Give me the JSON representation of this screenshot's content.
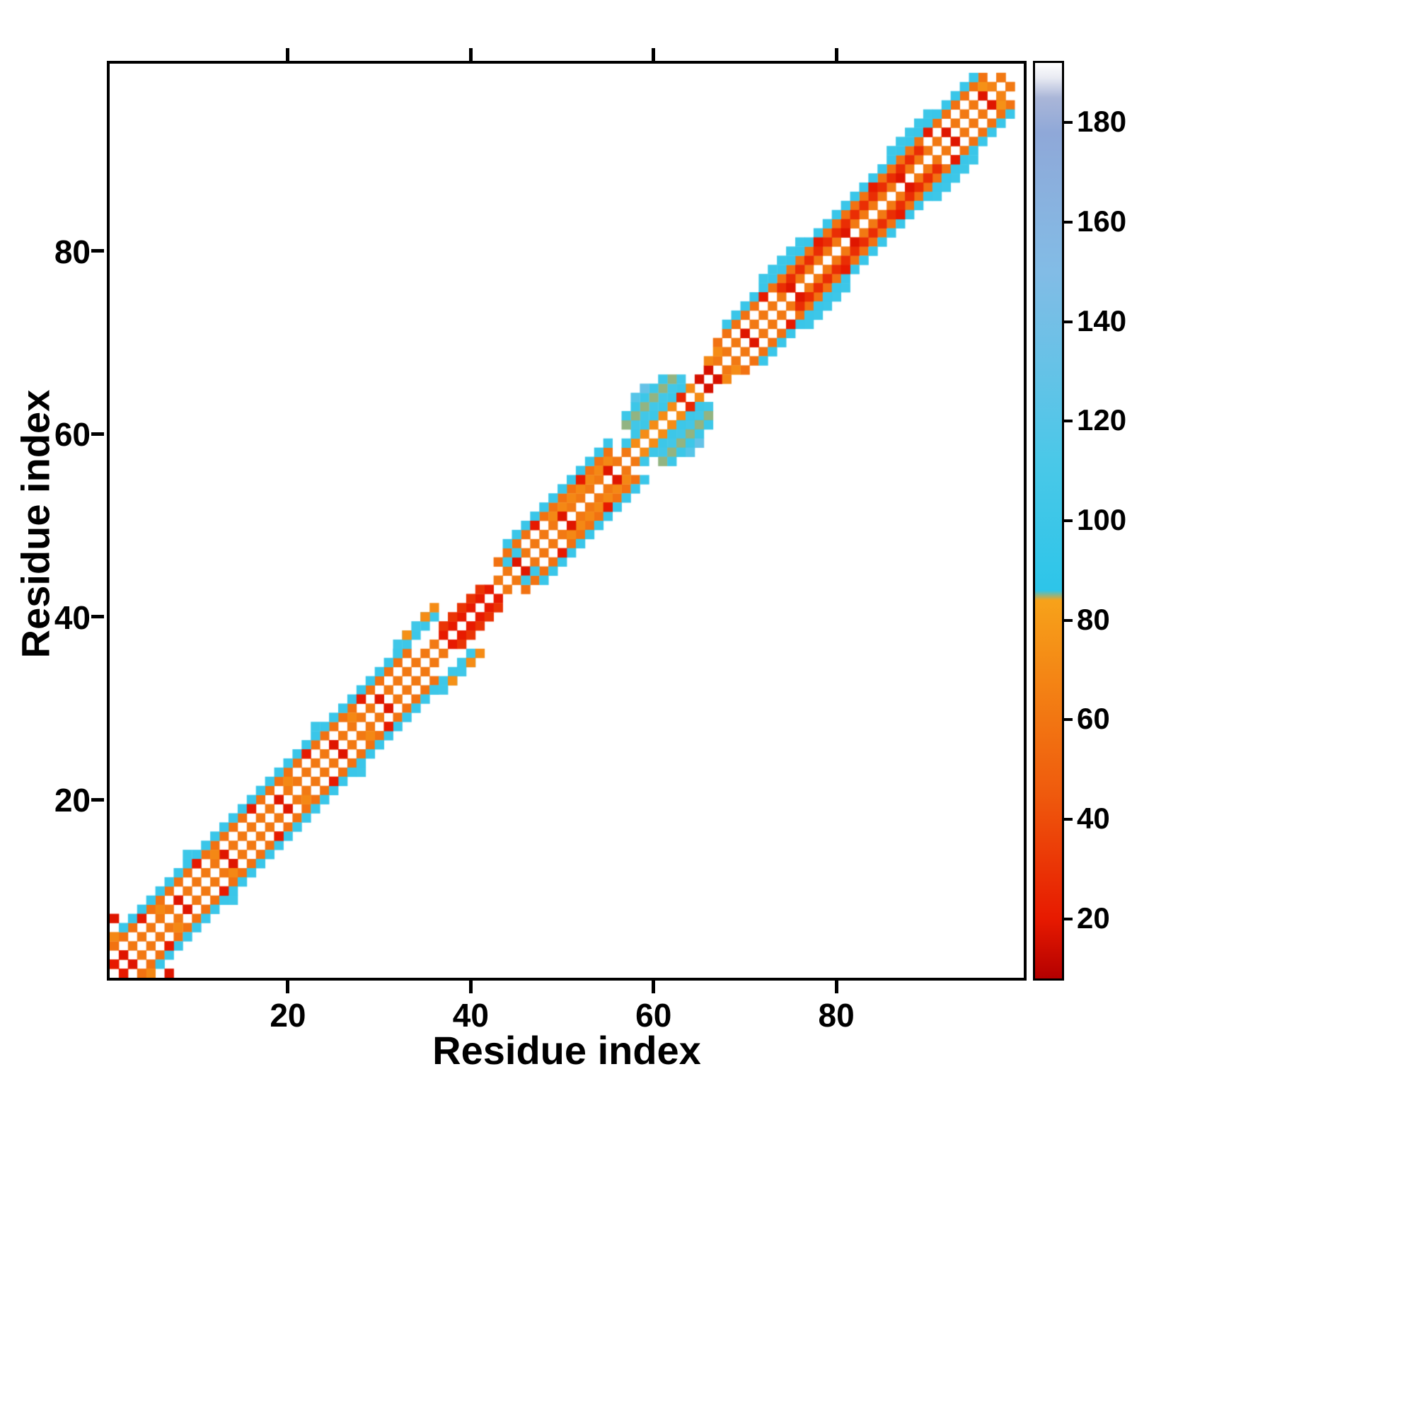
{
  "figure": {
    "xlabel": "Residue index",
    "ylabel": "Residue index"
  },
  "chart_data": {
    "type": "heatmap",
    "title": "",
    "xlabel": "Residue index",
    "ylabel": "Residue index",
    "n_residues": 100,
    "x_range": [
      1,
      100
    ],
    "y_range": [
      1,
      100
    ],
    "x_ticks": [
      20,
      40,
      60,
      80
    ],
    "y_ticks": [
      20,
      40,
      60,
      80
    ],
    "colorbar_ticks": [
      20,
      40,
      60,
      80,
      100,
      120,
      140,
      160,
      180
    ],
    "value_min": 8,
    "value_max": 192,
    "background_value": null,
    "colormap_stops": [
      [
        8,
        "#b40000"
      ],
      [
        20,
        "#e71a00"
      ],
      [
        45,
        "#ef5a0d"
      ],
      [
        84,
        "#f7a21a"
      ],
      [
        86,
        "#2dc5e9"
      ],
      [
        112,
        "#4ac8e8"
      ],
      [
        150,
        "#82bce6"
      ],
      [
        178,
        "#8fa8d8"
      ],
      [
        185,
        "#aab6d8"
      ],
      [
        189,
        "#e8eaf2"
      ],
      [
        192,
        "#ffffff"
      ]
    ],
    "bands": [
      [
        1,
        1,
        36,
        62
      ],
      [
        3,
        1,
        33,
        58
      ],
      [
        4,
        2,
        32,
        98
      ],
      [
        1,
        37,
        42,
        20
      ],
      [
        2,
        37,
        41,
        30
      ],
      [
        4,
        32,
        36,
        100
      ],
      [
        5,
        32,
        35,
        102
      ],
      [
        1,
        43,
        57,
        62
      ],
      [
        3,
        43,
        55,
        58
      ],
      [
        4,
        44,
        55,
        98
      ],
      [
        2,
        49,
        55,
        70
      ],
      [
        1,
        58,
        64,
        72
      ],
      [
        2,
        57,
        63,
        100
      ],
      [
        3,
        58,
        63,
        105
      ],
      [
        4,
        57,
        62,
        85
      ],
      [
        5,
        57,
        61,
        100
      ],
      [
        1,
        66,
        98,
        62
      ],
      [
        3,
        67,
        96,
        58
      ],
      [
        4,
        68,
        95,
        98
      ],
      [
        2,
        74,
        89,
        28
      ],
      [
        5,
        72,
        76,
        100
      ],
      [
        5,
        86,
        90,
        100
      ]
    ],
    "cells": [
      [
        2,
        3,
        18
      ],
      [
        8,
        9,
        18
      ],
      [
        13,
        14,
        18
      ],
      [
        19,
        20,
        18
      ],
      [
        25,
        26,
        18
      ],
      [
        30,
        31,
        18
      ],
      [
        45,
        46,
        18
      ],
      [
        50,
        51,
        18
      ],
      [
        55,
        56,
        18
      ],
      [
        70,
        71,
        18
      ],
      [
        75,
        76,
        18
      ],
      [
        81,
        82,
        18
      ],
      [
        87,
        88,
        18
      ],
      [
        92,
        93,
        18
      ],
      [
        96,
        97,
        18
      ],
      [
        4,
        7,
        20
      ],
      [
        10,
        13,
        20
      ],
      [
        16,
        19,
        20
      ],
      [
        22,
        25,
        20
      ],
      [
        28,
        31,
        20
      ],
      [
        47,
        50,
        20
      ],
      [
        52,
        55,
        20
      ],
      [
        72,
        75,
        20
      ],
      [
        78,
        81,
        20
      ],
      [
        84,
        87,
        20
      ],
      [
        90,
        93,
        20
      ],
      [
        6,
        8,
        70
      ],
      [
        12,
        14,
        70
      ],
      [
        20,
        22,
        70
      ],
      [
        27,
        29,
        70
      ],
      [
        9,
        14,
        100
      ],
      [
        23,
        28,
        100
      ],
      [
        44,
        46,
        100
      ],
      [
        45,
        47,
        100
      ],
      [
        35,
        40,
        72
      ],
      [
        36,
        41,
        72
      ],
      [
        33,
        38,
        75
      ],
      [
        58,
        64,
        120
      ],
      [
        59,
        65,
        130
      ],
      [
        63,
        64,
        25
      ],
      [
        65,
        66,
        16
      ],
      [
        66,
        67,
        16
      ],
      [
        66,
        68,
        70
      ],
      [
        67,
        69,
        72
      ],
      [
        96,
        98,
        75
      ],
      [
        97,
        98,
        68
      ],
      [
        98,
        99,
        62
      ],
      [
        1,
        7,
        18
      ],
      [
        1,
        5,
        70
      ],
      [
        1,
        2,
        20
      ]
    ]
  }
}
